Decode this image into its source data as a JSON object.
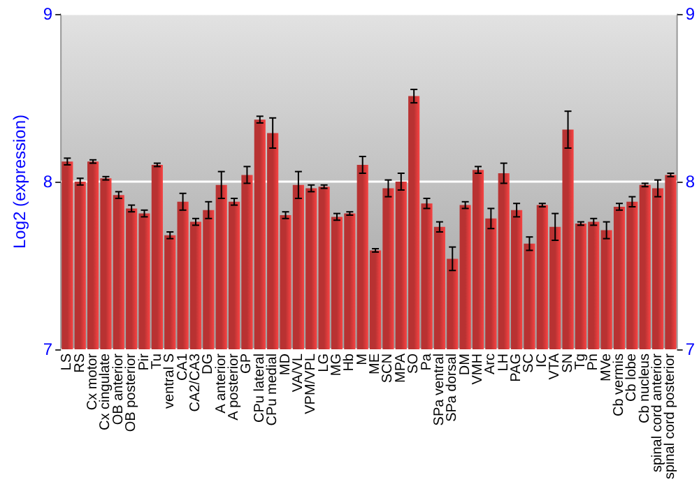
{
  "chart_data": {
    "type": "bar",
    "ylabel": "Log2 (expression)",
    "categories": [
      "LS",
      "RS",
      "Cx motor",
      "Cx cingulate",
      "OB anterior",
      "OB posterior",
      "Pir",
      "Tu",
      "ventral S",
      "CA1",
      "CA2/CA3",
      "DG",
      "A anterior",
      "A posterior",
      "GP",
      "CPu lateral",
      "CPu medial",
      "MD",
      "VA/VL",
      "VPM/VPL",
      "LG",
      "MG",
      "Hb",
      "M",
      "ME",
      "SCN",
      "MPA",
      "SO",
      "Pa",
      "SPa ventral",
      "SPa dorsal",
      "DM",
      "VMH",
      "Arc",
      "LH",
      "PAG",
      "SC",
      "IC",
      "VTA",
      "SN",
      "Tg",
      "Pn",
      "MVe",
      "Cb vermis",
      "Cb lobe",
      "Cb nucleus",
      "spinal cord anterior",
      "spinal cord posterior"
    ],
    "values": [
      8.12,
      8.0,
      8.12,
      8.02,
      7.92,
      7.84,
      7.81,
      8.1,
      7.68,
      7.88,
      7.76,
      7.83,
      7.98,
      7.88,
      8.04,
      8.37,
      8.29,
      7.8,
      7.98,
      7.96,
      7.97,
      7.79,
      7.81,
      8.1,
      7.59,
      7.96,
      8.0,
      8.51,
      7.87,
      7.73,
      7.54,
      7.86,
      8.07,
      7.78,
      8.05,
      7.83,
      7.63,
      7.86,
      7.73,
      8.31,
      7.75,
      7.76,
      7.71,
      7.85,
      7.88,
      7.98,
      7.96,
      8.04
    ],
    "errors": [
      0.02,
      0.02,
      0.01,
      0.01,
      0.02,
      0.02,
      0.02,
      0.01,
      0.02,
      0.05,
      0.02,
      0.05,
      0.08,
      0.02,
      0.05,
      0.02,
      0.09,
      0.02,
      0.08,
      0.02,
      0.01,
      0.02,
      0.01,
      0.05,
      0.01,
      0.05,
      0.05,
      0.04,
      0.03,
      0.03,
      0.07,
      0.02,
      0.02,
      0.06,
      0.06,
      0.04,
      0.04,
      0.01,
      0.08,
      0.11,
      0.01,
      0.02,
      0.05,
      0.02,
      0.03,
      0.01,
      0.05,
      0.01
    ],
    "color": "#b83232",
    "ylim": [
      7,
      9
    ],
    "yticks": [
      7,
      8,
      9
    ],
    "y2lim": [
      7,
      9
    ],
    "y2ticks": [
      7,
      8,
      9
    ],
    "grid": "y"
  }
}
